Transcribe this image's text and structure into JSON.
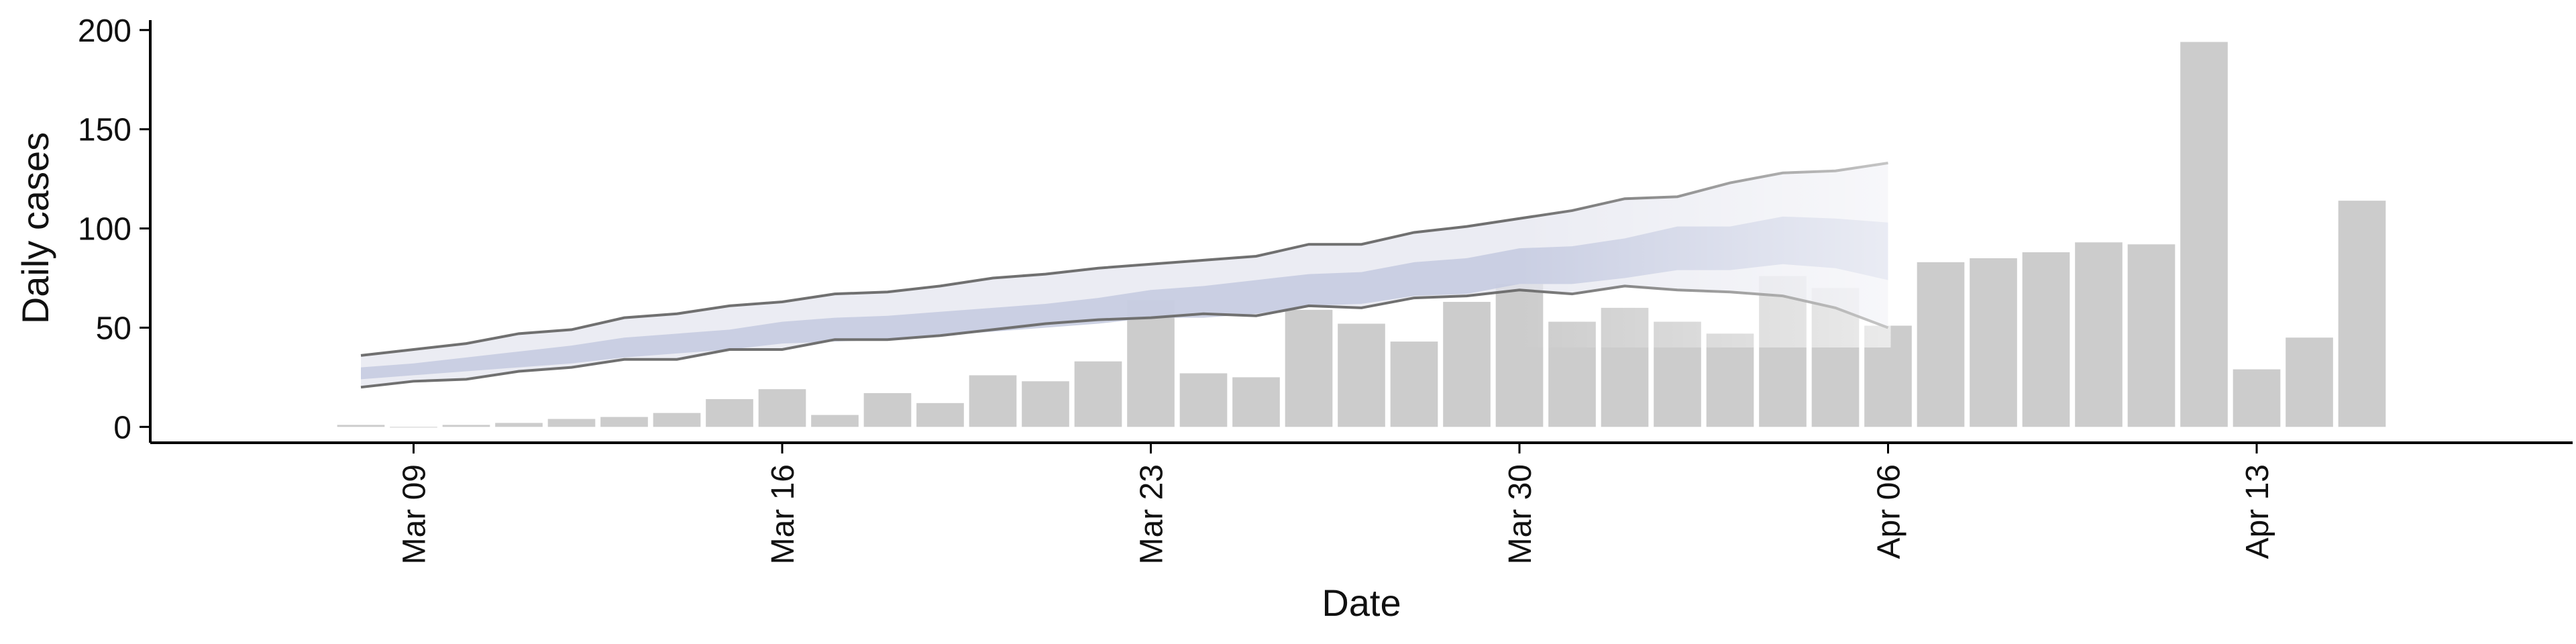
{
  "chart_data": {
    "type": "bar",
    "xlabel": "Date",
    "ylabel": "Daily cases",
    "ylim": [
      -8,
      205
    ],
    "xlim": [
      "2020-03-04",
      "2020-04-19"
    ],
    "year_assumed": 2020,
    "grid": false,
    "legend": "none",
    "x_ticks": [
      {
        "date": "2020-03-09",
        "label": "Mar 09"
      },
      {
        "date": "2020-03-16",
        "label": "Mar 16"
      },
      {
        "date": "2020-03-23",
        "label": "Mar 23"
      },
      {
        "date": "2020-03-30",
        "label": "Mar 30"
      },
      {
        "date": "2020-04-06",
        "label": "Apr 06"
      },
      {
        "date": "2020-04-13",
        "label": "Apr 13"
      }
    ],
    "y_ticks": [
      0,
      50,
      100,
      150,
      200
    ],
    "bar_dates": [
      "2020-03-08",
      "2020-03-09",
      "2020-03-10",
      "2020-03-11",
      "2020-03-12",
      "2020-03-13",
      "2020-03-14",
      "2020-03-15",
      "2020-03-16",
      "2020-03-17",
      "2020-03-18",
      "2020-03-19",
      "2020-03-20",
      "2020-03-21",
      "2020-03-22",
      "2020-03-23",
      "2020-03-24",
      "2020-03-25",
      "2020-03-26",
      "2020-03-27",
      "2020-03-28",
      "2020-03-29",
      "2020-03-30",
      "2020-03-31",
      "2020-04-01",
      "2020-04-02",
      "2020-04-03",
      "2020-04-04",
      "2020-04-05",
      "2020-04-06",
      "2020-04-07",
      "2020-04-08",
      "2020-04-09",
      "2020-04-10",
      "2020-04-11",
      "2020-04-12",
      "2020-04-13",
      "2020-04-14",
      "2020-04-15"
    ],
    "daily_cases": [
      1,
      0,
      1,
      2,
      4,
      5,
      7,
      14,
      19,
      6,
      17,
      12,
      26,
      23,
      33,
      64,
      27,
      25,
      59,
      52,
      43,
      63,
      72,
      53,
      60,
      53,
      47,
      76,
      70,
      51,
      83,
      85,
      88,
      93,
      92,
      194,
      29,
      45,
      114
    ],
    "estimate_dates": [
      "2020-03-08",
      "2020-03-09",
      "2020-03-10",
      "2020-03-11",
      "2020-03-12",
      "2020-03-13",
      "2020-03-14",
      "2020-03-15",
      "2020-03-16",
      "2020-03-17",
      "2020-03-18",
      "2020-03-19",
      "2020-03-20",
      "2020-03-21",
      "2020-03-22",
      "2020-03-23",
      "2020-03-24",
      "2020-03-25",
      "2020-03-26",
      "2020-03-27",
      "2020-03-28",
      "2020-03-29",
      "2020-03-30",
      "2020-03-31",
      "2020-04-01",
      "2020-04-02",
      "2020-04-03",
      "2020-04-04",
      "2020-04-05",
      "2020-04-06"
    ],
    "outer_upper": [
      36,
      39,
      42,
      47,
      49,
      55,
      57,
      61,
      63,
      67,
      68,
      71,
      75,
      77,
      80,
      82,
      84,
      86,
      92,
      92,
      98,
      101,
      105,
      109,
      115,
      116,
      123,
      128,
      129,
      133
    ],
    "inner_upper": [
      30,
      32,
      35,
      38,
      41,
      45,
      47,
      49,
      53,
      55,
      56,
      58,
      60,
      62,
      65,
      69,
      71,
      74,
      77,
      78,
      83,
      85,
      90,
      91,
      95,
      101,
      101,
      106,
      105,
      103
    ],
    "inner_lower": [
      24,
      26,
      28,
      30,
      32,
      35,
      37,
      39,
      42,
      43,
      44,
      46,
      48,
      50,
      52,
      55,
      55,
      57,
      61,
      62,
      66,
      67,
      72,
      72,
      75,
      79,
      79,
      82,
      80,
      74
    ],
    "outer_lower": [
      20,
      23,
      24,
      28,
      30,
      34,
      34,
      39,
      39,
      44,
      44,
      46,
      49,
      52,
      54,
      55,
      57,
      56,
      61,
      60,
      65,
      66,
      69,
      67,
      71,
      69,
      68,
      66,
      60,
      50
    ],
    "colors": {
      "bars": "#cccccc",
      "ribbon_outer": "#e4e6ef",
      "ribbon_inner": "#c4cadf",
      "bound_line": "#707070",
      "axis": "#000000"
    }
  }
}
